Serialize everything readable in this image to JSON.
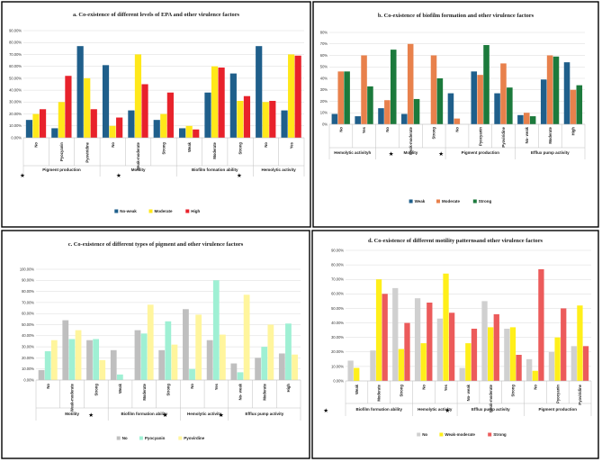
{
  "chart_data": [
    {
      "type": "bar",
      "title": "a. Co-existence of different levels of EPA and other virulence factors",
      "yticks": [
        "0.00%",
        "10.00%",
        "20.00%",
        "30.00%",
        "40.00%",
        "50.00%",
        "60.00%",
        "70.00%",
        "80.00%",
        "90.00%"
      ],
      "ylim": [
        0,
        0.9
      ],
      "categories": [
        "No",
        "Pyocyanin",
        "Pyoviridine",
        "No",
        "Weak-moderate",
        "Strong",
        "Weak",
        "Moderate",
        "Strong",
        "No",
        "Yes"
      ],
      "groups": [
        {
          "label": "Pigment production",
          "size": 3,
          "star": true
        },
        {
          "label": "Motility",
          "size": 3,
          "star": true
        },
        {
          "label": "Biofilm formation ability",
          "size": 3,
          "star": false
        },
        {
          "label": "Hemolytic activity",
          "size": 2,
          "star": true
        }
      ],
      "series": [
        {
          "name": "No-weak",
          "color": "#1f5f8b",
          "values": [
            0.15,
            0.08,
            0.77,
            0.61,
            0.23,
            0.15,
            0.08,
            0.38,
            0.54,
            0.77,
            0.23
          ]
        },
        {
          "name": "Moderate",
          "color": "#ffe81a",
          "values": [
            0.2,
            0.3,
            0.5,
            0.1,
            0.7,
            0.2,
            0.1,
            0.6,
            0.31,
            0.3,
            0.7
          ]
        },
        {
          "name": "High",
          "color": "#e8222b",
          "values": [
            0.24,
            0.52,
            0.24,
            0.17,
            0.45,
            0.38,
            0.07,
            0.59,
            0.35,
            0.31,
            0.69
          ]
        }
      ]
    },
    {
      "type": "bar",
      "title": "b. Co-existence of biofilm formation and other virulence factors",
      "yticks": [
        "0%",
        "10%",
        "20%",
        "30%",
        "40%",
        "50%",
        "60%",
        "70%",
        "80%"
      ],
      "ylim": [
        0,
        0.8
      ],
      "categories": [
        "No",
        "Yes",
        "No",
        "Weak-moderate",
        "Strong",
        "No",
        "Pyocyanin",
        "Pyoviridine",
        "No- weak",
        "Moderate",
        "High"
      ],
      "groups": [
        {
          "label": "Hemolytic activityh",
          "size": 2,
          "star": false
        },
        {
          "label": "Motility",
          "size": 3,
          "star": true
        },
        {
          "label": "Pigment production",
          "size": 3,
          "star": true
        },
        {
          "label": "Efflux pump activity",
          "size": 3,
          "star": false
        }
      ],
      "series": [
        {
          "name": "Weak",
          "color": "#1f5f8b",
          "values": [
            0.09,
            0.07,
            0.14,
            0.09,
            0.0,
            0.27,
            0.46,
            0.27,
            0.08,
            0.39,
            0.54
          ]
        },
        {
          "name": "Moderate",
          "color": "#e8814c",
          "values": [
            0.46,
            0.6,
            0.21,
            0.7,
            0.6,
            0.05,
            0.43,
            0.53,
            0.1,
            0.6,
            0.3
          ]
        },
        {
          "name": "Strong",
          "color": "#1c7a3c",
          "values": [
            0.46,
            0.33,
            0.65,
            0.22,
            0.4,
            0.0,
            0.69,
            0.32,
            0.07,
            0.59,
            0.34
          ]
        }
      ]
    },
    {
      "type": "bar",
      "title": "c. Co-existence of different types of pigment and other virulence factors",
      "yticks": [
        "0.00%",
        "10.00%",
        "20.00%",
        "30.00%",
        "40.00%",
        "50.00%",
        "60.00%",
        "70.00%",
        "80.00%",
        "90.00%",
        "100.00%"
      ],
      "ylim": [
        0,
        1.0
      ],
      "categories": [
        "No",
        "Weak-moderate",
        "Strong",
        "Weak",
        "Moderate",
        "Strong",
        "No",
        "Yes",
        "No- weak",
        "Moderate",
        "High"
      ],
      "groups": [
        {
          "label": "Motility",
          "size": 3,
          "star": false
        },
        {
          "label": "Biofilm formation ability",
          "size": 3,
          "star": true
        },
        {
          "label": "Hemolytic activity",
          "size": 2,
          "star": true
        },
        {
          "label": "Efflux pump activity",
          "size": 3,
          "star": true
        }
      ],
      "series": [
        {
          "name": "No",
          "color": "#bfbfbf",
          "values": [
            0.09,
            0.54,
            0.36,
            0.27,
            0.45,
            0.27,
            0.64,
            0.36,
            0.15,
            0.2,
            0.24
          ]
        },
        {
          "name": "Pyocyanin",
          "color": "#9ff0d4",
          "values": [
            0.26,
            0.37,
            0.37,
            0.05,
            0.42,
            0.53,
            0.1,
            0.9,
            0.07,
            0.3,
            0.51
          ]
        },
        {
          "name": "Pyovirdine",
          "color": "#fff59d",
          "values": [
            0.36,
            0.45,
            0.18,
            0.0,
            0.68,
            0.32,
            0.59,
            0.41,
            0.77,
            0.5,
            0.23
          ]
        }
      ]
    },
    {
      "type": "bar",
      "title": "d. Co-existence of different motility patternsand other virulence factors",
      "yticks": [
        "0.00%",
        "10.00%",
        "20.00%",
        "30.00%",
        "40.00%",
        "50.00%",
        "60.00%",
        "70.00%",
        "80.00%",
        "90.00%"
      ],
      "ylim": [
        0,
        0.9
      ],
      "categories": [
        "Weak",
        "Moderate",
        "Strong",
        "No",
        "Yes",
        "No- weak",
        "Weak-moderate",
        "Strong",
        "No",
        "Pyocyanin",
        "Pyoviridine"
      ],
      "groups": [
        {
          "label": "Biofilm formation ability",
          "size": 3,
          "star": true
        },
        {
          "label": "Hemolytic activity",
          "size": 2,
          "star": false
        },
        {
          "label": "Efflux pump activity",
          "size": 3,
          "star": true
        },
        {
          "label": "Pigment production",
          "size": 3,
          "star": false
        }
      ],
      "series": [
        {
          "name": "No",
          "color": "#d0d0d0",
          "values": [
            0.14,
            0.21,
            0.64,
            0.57,
            0.43,
            0.09,
            0.55,
            0.36,
            0.15,
            0.2,
            0.24
          ]
        },
        {
          "name": "Weak-moderate",
          "color": "#ffef1a",
          "values": [
            0.09,
            0.7,
            0.22,
            0.26,
            0.74,
            0.26,
            0.37,
            0.37,
            0.07,
            0.3,
            0.52
          ]
        },
        {
          "name": "Strong",
          "color": "#ec5b5b",
          "values": [
            0.0,
            0.6,
            0.4,
            0.54,
            0.47,
            0.36,
            0.46,
            0.18,
            0.77,
            0.5,
            0.24
          ]
        }
      ]
    }
  ]
}
